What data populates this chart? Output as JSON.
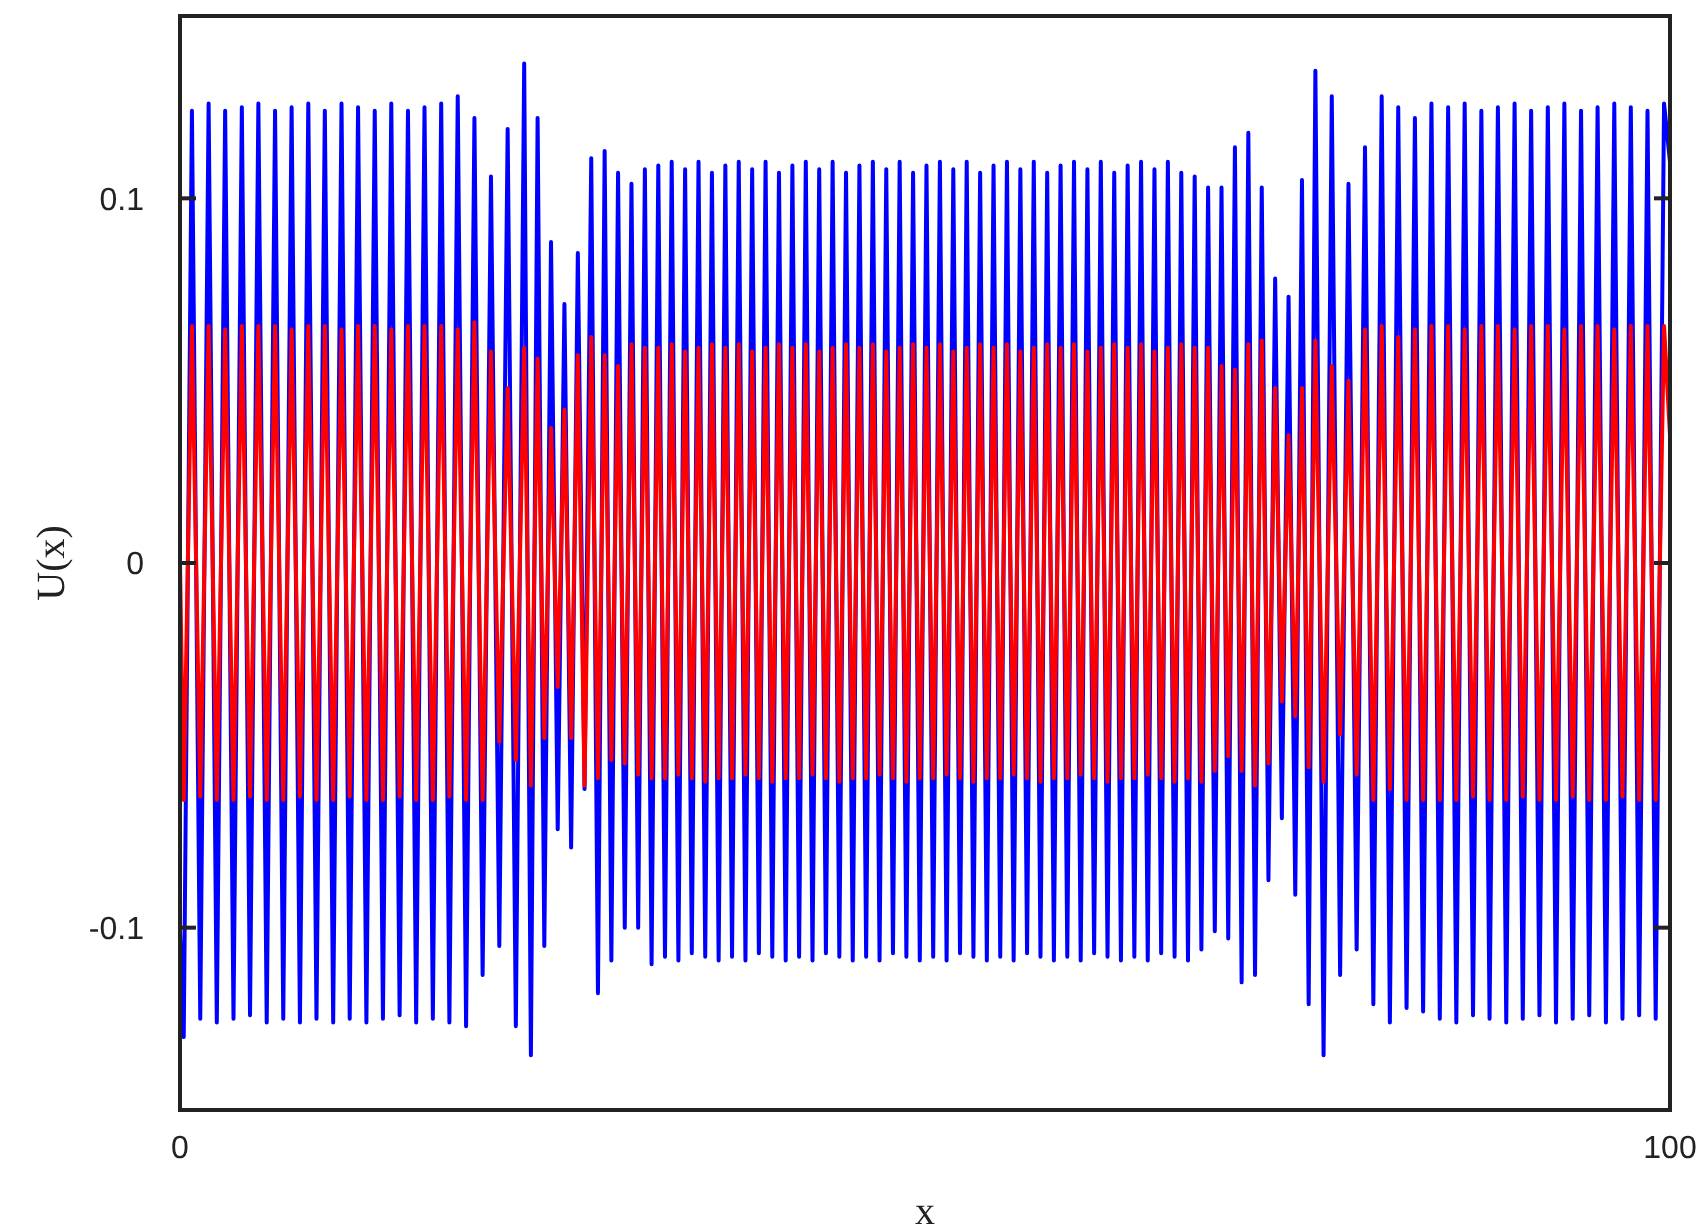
{
  "chart_data": {
    "type": "line",
    "xlabel": "x",
    "ylabel": "U(x)",
    "xlim": [
      0,
      100
    ],
    "xticks": [
      0,
      100
    ],
    "ylim": [
      -0.15,
      0.15
    ],
    "yticks": [
      -0.1,
      0,
      0.1
    ],
    "marker": "none",
    "line_style": "solid",
    "x": [
      0,
      0.25,
      0.8,
      1.36,
      1.92,
      2.47,
      3.03,
      3.59,
      4.15,
      4.7,
      5.26,
      5.82,
      6.38,
      6.93,
      7.49,
      8.05,
      8.61,
      9.16,
      9.72,
      10.28,
      10.84,
      11.39,
      11.95,
      12.51,
      13.07,
      13.62,
      14.18,
      14.74,
      15.3,
      15.85,
      16.41,
      16.97,
      17.53,
      18.08,
      18.64,
      19.2,
      19.76,
      20.31,
      20.87,
      21.43,
      21.99,
      22.54,
      23.1,
      23.55,
      24.0,
      24.45,
      24.9,
      25.35,
      25.8,
      26.25,
      26.7,
      27.15,
      27.6,
      28.05,
      28.5,
      28.95,
      29.4,
      29.85,
      30.3,
      30.75,
      31.2,
      31.65,
      32.1,
      32.55,
      33.0,
      33.45,
      33.9,
      34.35,
      34.8,
      35.25,
      35.7,
      36.15,
      36.6,
      37.05,
      37.5,
      37.95,
      38.4,
      38.85,
      39.3,
      39.75,
      40.2,
      40.65,
      41.1,
      41.55,
      42.0,
      42.45,
      42.9,
      43.35,
      43.8,
      44.25,
      44.7,
      45.15,
      45.6,
      46.05,
      46.5,
      46.95,
      47.4,
      47.85,
      48.3,
      48.75,
      49.2,
      49.65,
      50.1,
      50.55,
      51.0,
      51.45,
      51.9,
      52.35,
      52.8,
      53.25,
      53.7,
      54.15,
      54.6,
      55.05,
      55.5,
      55.95,
      56.4,
      56.85,
      57.3,
      57.75,
      58.2,
      58.65,
      59.1,
      59.55,
      60.0,
      60.45,
      60.9,
      61.35,
      61.8,
      62.25,
      62.7,
      63.15,
      63.6,
      64.05,
      64.5,
      64.95,
      65.4,
      65.85,
      66.3,
      66.75,
      67.2,
      67.65,
      68.1,
      68.55,
      69.0,
      69.45,
      69.9,
      70.35,
      70.8,
      71.25,
      71.7,
      72.15,
      72.6,
      73.05,
      73.5,
      73.95,
      74.4,
      74.85,
      75.3,
      75.75,
      76.2,
      76.75,
      77.3,
      77.86,
      78.42,
      78.97,
      79.53,
      80.09,
      80.65,
      81.2,
      81.76,
      82.32,
      82.88,
      83.43,
      83.99,
      84.55,
      85.11,
      85.66,
      86.22,
      86.78,
      87.34,
      87.89,
      88.45,
      89.01,
      89.57,
      90.12,
      90.68,
      91.24,
      91.8,
      92.35,
      92.91,
      93.47,
      94.03,
      94.58,
      95.14,
      95.7,
      96.26,
      96.81,
      97.37,
      97.93,
      98.49,
      99.04,
      99.6,
      100
    ],
    "series": [
      {
        "color": "#0000ff",
        "values": [
          -0.1,
          -0.13,
          0.124,
          -0.125,
          0.126,
          -0.126,
          0.124,
          -0.125,
          0.125,
          -0.124,
          0.126,
          -0.126,
          0.124,
          -0.125,
          0.125,
          -0.126,
          0.126,
          -0.125,
          0.124,
          -0.126,
          0.126,
          -0.125,
          0.125,
          -0.126,
          0.124,
          -0.125,
          0.126,
          -0.124,
          0.124,
          -0.126,
          0.125,
          -0.125,
          0.126,
          -0.126,
          0.128,
          -0.127,
          0.122,
          -0.113,
          0.106,
          -0.105,
          0.119,
          -0.127,
          0.137,
          -0.135,
          0.122,
          -0.105,
          0.088,
          -0.073,
          0.071,
          -0.078,
          0.085,
          -0.062,
          0.111,
          -0.118,
          0.113,
          -0.109,
          0.107,
          -0.1,
          0.104,
          -0.1,
          0.108,
          -0.11,
          0.109,
          -0.108,
          0.11,
          -0.109,
          0.108,
          -0.107,
          0.11,
          -0.108,
          0.107,
          -0.109,
          0.109,
          -0.108,
          0.11,
          -0.109,
          0.108,
          -0.107,
          0.11,
          -0.108,
          0.107,
          -0.109,
          0.109,
          -0.108,
          0.11,
          -0.109,
          0.108,
          -0.107,
          0.11,
          -0.108,
          0.107,
          -0.109,
          0.109,
          -0.108,
          0.11,
          -0.109,
          0.108,
          -0.107,
          0.11,
          -0.108,
          0.107,
          -0.109,
          0.109,
          -0.108,
          0.11,
          -0.109,
          0.108,
          -0.107,
          0.11,
          -0.108,
          0.107,
          -0.109,
          0.109,
          -0.108,
          0.11,
          -0.109,
          0.108,
          -0.107,
          0.11,
          -0.108,
          0.107,
          -0.109,
          0.109,
          -0.108,
          0.11,
          -0.109,
          0.108,
          -0.107,
          0.11,
          -0.108,
          0.107,
          -0.109,
          0.109,
          -0.108,
          0.11,
          -0.109,
          0.108,
          -0.107,
          0.11,
          -0.108,
          0.107,
          -0.109,
          0.106,
          -0.106,
          0.103,
          -0.101,
          0.103,
          -0.103,
          0.114,
          -0.115,
          0.118,
          -0.113,
          0.103,
          -0.087,
          0.078,
          -0.07,
          0.073,
          -0.091,
          0.105,
          -0.121,
          0.135,
          -0.135,
          0.128,
          -0.113,
          0.104,
          -0.106,
          0.114,
          -0.121,
          0.128,
          -0.126,
          0.125,
          -0.122,
          0.122,
          -0.123,
          0.126,
          -0.125,
          0.125,
          -0.126,
          0.126,
          -0.124,
          0.124,
          -0.125,
          0.125,
          -0.126,
          0.126,
          -0.125,
          0.124,
          -0.124,
          0.125,
          -0.126,
          0.126,
          -0.125,
          0.124,
          -0.124,
          0.125,
          -0.126,
          0.126,
          -0.125,
          0.125,
          -0.124,
          0.124,
          -0.125,
          0.126,
          0.11
        ]
      },
      {
        "color": "#ff0000",
        "values": [
          0,
          -0.065,
          0.065,
          -0.064,
          0.065,
          -0.065,
          0.064,
          -0.065,
          0.065,
          -0.064,
          0.065,
          -0.065,
          0.065,
          -0.065,
          0.064,
          -0.064,
          0.065,
          -0.065,
          0.065,
          -0.065,
          0.064,
          -0.064,
          0.065,
          -0.065,
          0.065,
          -0.065,
          0.064,
          -0.064,
          0.065,
          -0.065,
          0.065,
          -0.065,
          0.065,
          -0.064,
          0.064,
          -0.065,
          0.066,
          -0.065,
          0.058,
          -0.049,
          0.048,
          -0.054,
          0.059,
          -0.061,
          0.056,
          -0.048,
          0.037,
          -0.034,
          0.042,
          -0.048,
          0.057,
          -0.061,
          0.062,
          -0.059,
          0.057,
          -0.054,
          0.054,
          -0.055,
          0.06,
          -0.058,
          0.059,
          -0.059,
          0.059,
          -0.059,
          0.06,
          -0.058,
          0.058,
          -0.059,
          0.059,
          -0.06,
          0.06,
          -0.059,
          0.059,
          -0.059,
          0.06,
          -0.058,
          0.058,
          -0.059,
          0.059,
          -0.06,
          0.06,
          -0.059,
          0.059,
          -0.059,
          0.06,
          -0.058,
          0.058,
          -0.059,
          0.059,
          -0.06,
          0.06,
          -0.059,
          0.059,
          -0.059,
          0.06,
          -0.058,
          0.058,
          -0.059,
          0.059,
          -0.06,
          0.06,
          -0.059,
          0.059,
          -0.059,
          0.06,
          -0.058,
          0.058,
          -0.059,
          0.059,
          -0.06,
          0.06,
          -0.059,
          0.059,
          -0.059,
          0.06,
          -0.058,
          0.058,
          -0.059,
          0.059,
          -0.06,
          0.06,
          -0.059,
          0.059,
          -0.059,
          0.06,
          -0.058,
          0.058,
          -0.059,
          0.059,
          -0.06,
          0.06,
          -0.059,
          0.059,
          -0.059,
          0.06,
          -0.058,
          0.058,
          -0.059,
          0.059,
          -0.06,
          0.06,
          -0.059,
          0.059,
          -0.06,
          0.059,
          -0.057,
          0.054,
          -0.053,
          0.053,
          -0.057,
          0.06,
          -0.061,
          0.061,
          -0.055,
          0.048,
          -0.038,
          0.035,
          -0.042,
          0.048,
          -0.056,
          0.061,
          -0.06,
          0.054,
          -0.047,
          0.05,
          -0.058,
          0.064,
          -0.065,
          0.065,
          -0.062,
          0.062,
          -0.065,
          0.064,
          -0.065,
          0.065,
          -0.065,
          0.065,
          -0.065,
          0.064,
          -0.064,
          0.065,
          -0.065,
          0.065,
          -0.065,
          0.064,
          -0.064,
          0.065,
          -0.065,
          0.065,
          -0.065,
          0.064,
          -0.064,
          0.065,
          -0.065,
          0.065,
          -0.065,
          0.064,
          -0.064,
          0.065,
          -0.065,
          0.065,
          -0.065,
          0.065,
          0.035
        ]
      }
    ]
  }
}
